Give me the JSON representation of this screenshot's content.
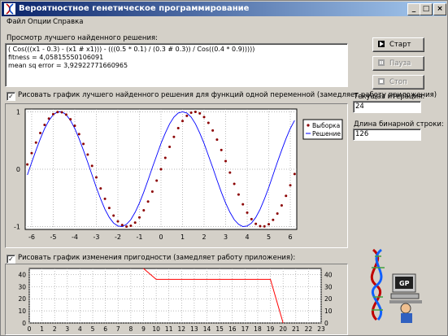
{
  "window": {
    "title": "Вероятностное генетическое программирование",
    "controls": {
      "minimize": "_",
      "maximize": "□",
      "close": "×"
    }
  },
  "menu": [
    "Файл",
    "Опции",
    "Справка"
  ],
  "solution_view": {
    "label": "Просмотр лучшего найденного решения:",
    "lines": [
      "( Cos(((x1 - 0.3) - (x1 # x1))) - (((0.5 * 0.1) / (0.3 # 0.3)) /  Cos((0.4 * 0.9)))))",
      "fitness = 4,05815550106091",
      "mean sq error = 3,92922771660965"
    ]
  },
  "buttons": {
    "start": {
      "label": "Старт",
      "enabled": true
    },
    "pause": {
      "label": "Пауза",
      "enabled": false
    },
    "stop": {
      "label": "Стоп",
      "enabled": false
    }
  },
  "iteration": {
    "label": "Текущая итерация:",
    "value": "24"
  },
  "binary_length": {
    "label": "Длина бинарной строки:",
    "value": "126"
  },
  "checkbox_function_plot": {
    "label": "Рисовать график лучшего найденного решения для функций одной переменной (замедляет работу приложения)",
    "checked": true,
    "mark": "✓"
  },
  "checkbox_fitness_plot": {
    "label": "Рисовать график изменения пригодности (замедляет работу приложения):",
    "checked": true,
    "mark": "✓"
  },
  "colors": {
    "sample": "#8b0000",
    "solution": "#0000ff",
    "fitness": "#ff0000",
    "title_start": "#0a246a",
    "title_end": "#a6caf0"
  },
  "chart_data": [
    {
      "type": "scatter",
      "legend": [
        "Выборка",
        "Решение"
      ],
      "legend_position": "top-right",
      "xlim": [
        -6.3,
        6.3
      ],
      "ylim": [
        -1.05,
        1.05
      ],
      "x_ticks": [
        -6,
        -5,
        -4,
        -3,
        -2,
        -1,
        0,
        1,
        2,
        3,
        4,
        5,
        6
      ],
      "y_ticks": [
        1,
        0,
        -1
      ],
      "grid": true,
      "series": [
        {
          "name": "Выборка",
          "type": "scatter",
          "function": "sin(x)",
          "x_from": -6.2,
          "x_to": 6.2,
          "x_step": 0.2
        },
        {
          "name": "Решение",
          "type": "line",
          "points": [
            [
              -6.2,
              -0.1
            ],
            [
              -6.0,
              0.12
            ],
            [
              -5.8,
              0.33
            ],
            [
              -5.6,
              0.53
            ],
            [
              -5.4,
              0.71
            ],
            [
              -5.2,
              0.85
            ],
            [
              -5.0,
              0.95
            ],
            [
              -4.8,
              1.0
            ],
            [
              -4.6,
              1.0
            ],
            [
              -4.4,
              0.95
            ],
            [
              -4.2,
              0.85
            ],
            [
              -4.0,
              0.71
            ],
            [
              -3.8,
              0.53
            ],
            [
              -3.6,
              0.33
            ],
            [
              -3.4,
              0.12
            ],
            [
              -3.2,
              -0.1
            ],
            [
              -3.0,
              -0.32
            ],
            [
              -2.8,
              -0.52
            ],
            [
              -2.6,
              -0.7
            ],
            [
              -2.4,
              -0.84
            ],
            [
              -2.2,
              -0.94
            ],
            [
              -2.0,
              -0.99
            ],
            [
              -1.8,
              -1.0
            ],
            [
              -1.6,
              -0.96
            ],
            [
              -1.4,
              -0.88
            ],
            [
              -1.2,
              -0.75
            ],
            [
              -1.0,
              -0.59
            ],
            [
              -0.8,
              -0.4
            ],
            [
              -0.6,
              -0.19
            ],
            [
              -0.4,
              0.03
            ],
            [
              -0.2,
              0.24
            ],
            [
              0.0,
              0.45
            ],
            [
              0.2,
              0.63
            ],
            [
              0.4,
              0.79
            ],
            [
              0.6,
              0.91
            ],
            [
              0.8,
              0.98
            ],
            [
              1.0,
              1.0
            ],
            [
              1.2,
              0.98
            ],
            [
              1.4,
              0.91
            ],
            [
              1.6,
              0.79
            ],
            [
              1.8,
              0.63
            ],
            [
              2.0,
              0.45
            ],
            [
              2.2,
              0.24
            ],
            [
              2.4,
              0.03
            ],
            [
              2.6,
              -0.19
            ],
            [
              2.8,
              -0.4
            ],
            [
              3.0,
              -0.59
            ],
            [
              3.2,
              -0.75
            ],
            [
              3.4,
              -0.88
            ],
            [
              3.6,
              -0.96
            ],
            [
              3.8,
              -1.0
            ],
            [
              4.0,
              -0.99
            ],
            [
              4.2,
              -0.94
            ],
            [
              4.4,
              -0.84
            ],
            [
              4.6,
              -0.7
            ],
            [
              4.8,
              -0.52
            ],
            [
              5.0,
              -0.32
            ],
            [
              5.2,
              -0.1
            ],
            [
              5.4,
              0.12
            ],
            [
              5.6,
              0.33
            ],
            [
              5.8,
              0.53
            ],
            [
              6.0,
              0.71
            ],
            [
              6.2,
              0.85
            ]
          ]
        }
      ]
    },
    {
      "type": "line",
      "xlim": [
        0,
        23
      ],
      "ylim": [
        0,
        45
      ],
      "x_ticks": [
        0,
        1,
        2,
        3,
        4,
        5,
        6,
        7,
        8,
        9,
        10,
        11,
        12,
        13,
        14,
        15,
        16,
        17,
        18,
        19,
        20,
        21,
        22,
        23
      ],
      "y_ticks": [
        40,
        30,
        20,
        10,
        0
      ],
      "grid": true,
      "series": [
        {
          "points": [
            [
              9,
              45
            ],
            [
              10,
              36
            ],
            [
              19,
              36
            ],
            [
              20,
              0
            ]
          ]
        }
      ]
    }
  ]
}
